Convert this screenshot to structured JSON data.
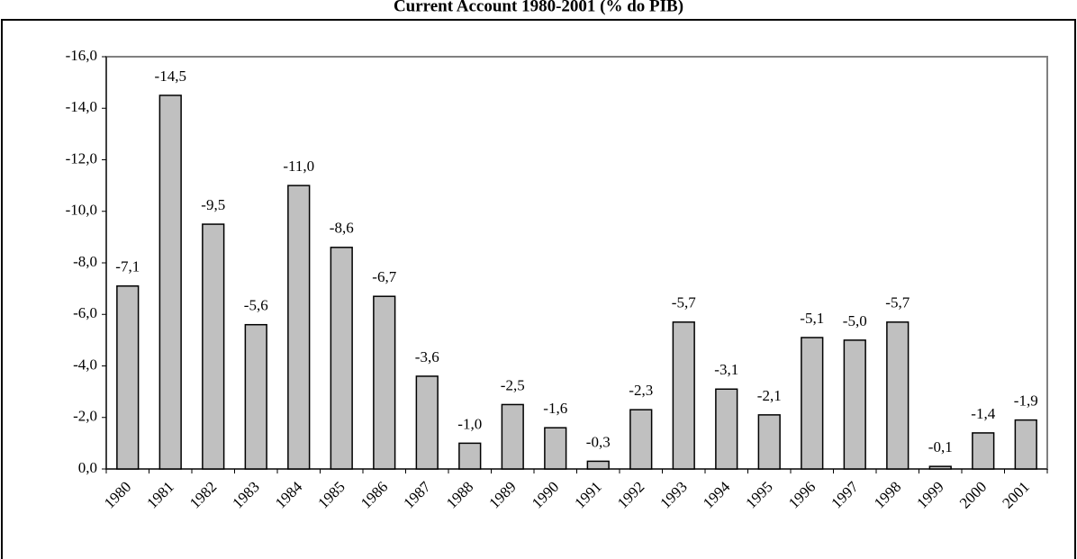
{
  "chart_data": {
    "type": "bar",
    "title": "Current Account 1980-2001 (% do PIB)",
    "categories": [
      "1980",
      "1981",
      "1982",
      "1983",
      "1984",
      "1985",
      "1986",
      "1987",
      "1988",
      "1989",
      "1990",
      "1991",
      "1992",
      "1993",
      "1994",
      "1995",
      "1996",
      "1997",
      "1998",
      "1999",
      "2000",
      "2001"
    ],
    "values": [
      -7.1,
      -14.5,
      -9.5,
      -5.6,
      -11.0,
      -8.6,
      -6.7,
      -3.6,
      -1.0,
      -2.5,
      -1.6,
      -0.3,
      -2.3,
      -5.7,
      -3.1,
      -2.1,
      -5.1,
      -5.0,
      -5.7,
      -0.1,
      -1.4,
      -1.9
    ],
    "value_labels": [
      "-7,1",
      "-14,5",
      "-9,5",
      "-5,6",
      "-11,0",
      "-8,6",
      "-6,7",
      "-3,6",
      "-1,0",
      "-2,5",
      "-1,6",
      "-0,3",
      "-2,3",
      "-5,7",
      "-3,1",
      "-2,1",
      "-5,1",
      "-5,0",
      "-5,7",
      "-0,1",
      "-1,4",
      "-1,9"
    ],
    "color": "#c0c0c0",
    "ylim": [
      0,
      -16
    ],
    "yticks": [
      {
        "value": -16,
        "label": "-16,0"
      },
      {
        "value": -14,
        "label": "-14,0"
      },
      {
        "value": -12,
        "label": "-12,0"
      },
      {
        "value": -10,
        "label": "-10,0"
      },
      {
        "value": -8,
        "label": "-8,0"
      },
      {
        "value": -6,
        "label": "-6,0"
      },
      {
        "value": -4,
        "label": "-4,0"
      },
      {
        "value": -2,
        "label": "-2,0"
      },
      {
        "value": 0,
        "label": "0,0"
      }
    ],
    "grid": false
  }
}
